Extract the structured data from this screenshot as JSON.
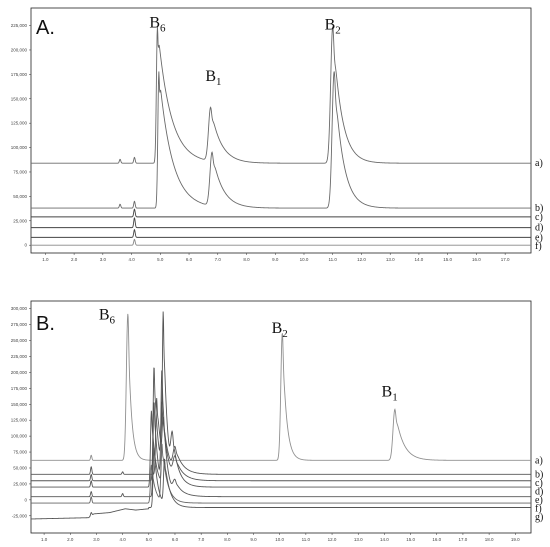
{
  "chart_data": [
    {
      "type": "line",
      "panel_label": "A.",
      "x_ticks": [
        1.0,
        2.0,
        3.0,
        4.0,
        5.0,
        6.0,
        7.0,
        8.0,
        9.0,
        10.0,
        11.0,
        12.0,
        13.0,
        14.0,
        15.0,
        16.0,
        17.0
      ],
      "x_tick_labels": [
        "1.0",
        "2.0",
        "3.0",
        "4.0",
        "5.0",
        "6.0",
        "7.0",
        "8.0",
        "9.0",
        "10.0",
        "11.0",
        "12.0",
        "13.0",
        "14.0",
        "15.0",
        "16.0",
        "17.0"
      ],
      "xlim": [
        0.5,
        17.9
      ],
      "y_ticks": [
        0,
        25000,
        50000,
        75000,
        100000,
        125000,
        150000,
        175000,
        200000,
        225000
      ],
      "y_tick_labels": [
        "0",
        "25,000",
        "50,000",
        "75,000",
        "100,000",
        "125,000",
        "150,000",
        "175,000",
        "200,000",
        "225,000"
      ],
      "ylim": [
        -8000,
        243000
      ],
      "peak_labels": [
        {
          "base": "B",
          "sub": "6",
          "x": 4.9,
          "y": 223000
        },
        {
          "base": "B",
          "sub": "1",
          "x": 6.85,
          "y": 168000
        },
        {
          "base": "B",
          "sub": "2",
          "x": 11.0,
          "y": 221000
        }
      ],
      "series": [
        {
          "name": "a)",
          "baseline": 84000,
          "color": "#6a6a6a",
          "spikes": [
            [
              3.6,
              4000
            ],
            [
              4.1,
              6000
            ]
          ],
          "peaks": [
            [
              4.9,
              140000,
              0.05,
              0.45
            ],
            [
              6.75,
              55000,
              0.1,
              0.35
            ],
            [
              11.0,
              140000,
              0.1,
              0.3
            ]
          ]
        },
        {
          "name": "b)",
          "baseline": 38000,
          "color": "#6a6a6a",
          "spikes": [
            [
              3.6,
              4000
            ],
            [
              4.1,
              7000
            ]
          ],
          "peaks": [
            [
              4.95,
              140000,
              0.05,
              0.45
            ],
            [
              6.8,
              55000,
              0.1,
              0.35
            ],
            [
              11.05,
              140000,
              0.1,
              0.3
            ]
          ]
        },
        {
          "name": "c)",
          "baseline": 29000,
          "color": "#444444",
          "spikes": [
            [
              4.1,
              8000
            ]
          ],
          "peaks": []
        },
        {
          "name": "d)",
          "baseline": 18000,
          "color": "#444444",
          "spikes": [
            [
              4.1,
              10000
            ]
          ],
          "peaks": []
        },
        {
          "name": "e)",
          "baseline": 8000,
          "color": "#444444",
          "spikes": [
            [
              4.1,
              8000
            ]
          ],
          "peaks": []
        },
        {
          "name": "f)",
          "baseline": 0,
          "color": "#888888",
          "spikes": [
            [
              4.1,
              6000
            ]
          ],
          "peaks": []
        }
      ]
    },
    {
      "type": "line",
      "panel_label": "B.",
      "x_ticks": [
        1.0,
        2.0,
        3.0,
        4.0,
        5.0,
        6.0,
        7.0,
        8.0,
        9.0,
        10.0,
        11.0,
        12.0,
        13.0,
        14.0,
        15.0,
        16.0,
        17.0,
        18.0,
        19.0
      ],
      "x_tick_labels": [
        "1.0",
        "2.0",
        "3.0",
        "4.0",
        "5.0",
        "6.0",
        "7.0",
        "8.0",
        "9.0",
        "10.0",
        "11.0",
        "12.0",
        "13.0",
        "14.0",
        "15.0",
        "16.0",
        "17.0",
        "18.0",
        "19.0"
      ],
      "xlim": [
        0.5,
        19.6
      ],
      "y_ticks": [
        -25000,
        0,
        25000,
        50000,
        75000,
        100000,
        125000,
        150000,
        175000,
        200000,
        225000,
        250000,
        275000,
        300000
      ],
      "y_tick_labels": [
        "-25,000",
        "0",
        "25,000",
        "50,000",
        "75,000",
        "100,000",
        "125,000",
        "150,000",
        "175,000",
        "200,000",
        "225,000",
        "250,000",
        "275,000",
        "300,000"
      ],
      "ylim": [
        -52000,
        312000
      ],
      "peak_labels": [
        {
          "base": "B",
          "sub": "6",
          "x": 3.4,
          "y": 283000
        },
        {
          "base": "B",
          "sub": "2",
          "x": 10.0,
          "y": 262000
        },
        {
          "base": "B",
          "sub": "1",
          "x": 14.2,
          "y": 162000
        }
      ],
      "series": [
        {
          "name": "a)",
          "baseline": 62000,
          "color": "#909090",
          "spikes": [
            [
              2.8,
              8000
            ]
          ],
          "peaks": [
            [
              4.2,
              230000,
              0.08,
              0.12
            ],
            [
              10.1,
              200000,
              0.08,
              0.15
            ],
            [
              14.4,
              80000,
              0.1,
              0.3
            ]
          ]
        },
        {
          "name": "b)",
          "baseline": 40000,
          "color": "#555555",
          "spikes": [
            [
              2.8,
              12000
            ],
            [
              4.0,
              4000
            ]
          ],
          "peaks": [
            [
              5.3,
              120000,
              0.05,
              0.18
            ],
            [
              5.55,
              60000,
              0.05,
              0.2
            ],
            [
              6.0,
              35000,
              0.1,
              0.3
            ]
          ]
        },
        {
          "name": "c)",
          "baseline": 30000,
          "color": "#555555",
          "spikes": [
            [
              2.8,
              10000
            ]
          ],
          "peaks": [
            [
              5.2,
              180000,
              0.05,
              0.15
            ],
            [
              5.5,
              100000,
              0.05,
              0.2
            ],
            [
              6.0,
              30000,
              0.1,
              0.3
            ]
          ]
        },
        {
          "name": "d)",
          "baseline": 20000,
          "color": "#555555",
          "spikes": [
            [
              2.8,
              10000
            ]
          ],
          "peaks": [
            [
              5.1,
              120000,
              0.05,
              0.15
            ],
            [
              5.55,
              270000,
              0.05,
              0.15
            ],
            [
              5.9,
              60000,
              0.08,
              0.25
            ]
          ]
        },
        {
          "name": "e)",
          "baseline": 5000,
          "color": "#555555",
          "spikes": [
            [
              2.8,
              8000
            ],
            [
              4.0,
              5000
            ]
          ],
          "peaks": [
            [
              5.2,
              150000,
              0.05,
              0.15
            ],
            [
              5.5,
              180000,
              0.05,
              0.15
            ],
            [
              6.0,
              20000,
              0.1,
              0.3
            ]
          ]
        },
        {
          "name": "f)",
          "baseline": -5000,
          "color": "#666666",
          "spikes": [
            [
              2.8,
              10000
            ]
          ],
          "peaks": [
            [
              5.1,
              60000,
              0.05,
              0.15
            ],
            [
              5.5,
              90000,
              0.05,
              0.2
            ]
          ]
        },
        {
          "name": "g)",
          "baseline": -12000,
          "color": "#555555",
          "ramp": [
            [
              0.5,
              -30000
            ],
            [
              2.7,
              -28000
            ],
            [
              2.9,
              -22000
            ],
            [
              3.5,
              -20000
            ],
            [
              4.1,
              -14000
            ],
            [
              4.5,
              -16000
            ],
            [
              5.0,
              -14000
            ]
          ],
          "spikes": [
            [
              2.8,
              5000
            ]
          ],
          "peaks": [
            [
              5.2,
              95000,
              0.05,
              0.15
            ],
            [
              5.6,
              70000,
              0.05,
              0.2
            ]
          ]
        }
      ]
    }
  ]
}
